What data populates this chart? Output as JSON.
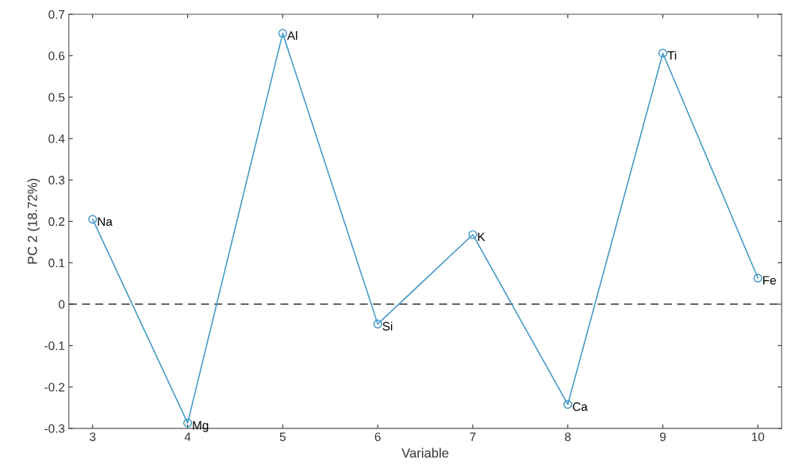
{
  "chart_data": {
    "type": "line",
    "xlabel": "Variable",
    "ylabel": "PC 2 (18.72%)",
    "x": [
      3,
      4,
      5,
      6,
      7,
      8,
      9,
      10
    ],
    "series": [
      {
        "color": "#3f97c4",
        "values": [
          0.205,
          -0.287,
          0.654,
          -0.048,
          0.168,
          -0.242,
          0.606,
          0.063
        ]
      }
    ],
    "marker": "circle",
    "line_style": "solid",
    "grid": false,
    "legend": false,
    "xlim": [
      2.75,
      10.25
    ],
    "xticks": [
      3,
      4,
      5,
      6,
      7,
      8,
      9,
      10
    ],
    "ylim": [
      -0.3,
      0.7
    ],
    "yticks": [
      -0.3,
      -0.2,
      -0.1,
      0,
      0.1,
      0.2,
      0.3,
      0.4,
      0.5,
      0.6,
      0.7
    ],
    "ref_lines": [
      {
        "axis": "y",
        "value": 0,
        "color": "#333333",
        "line_style": "dashed"
      }
    ],
    "annotations": [
      {
        "text": "Na",
        "x": 3,
        "y": 0.205
      },
      {
        "text": "Mg",
        "x": 4,
        "y": -0.287
      },
      {
        "text": "Al",
        "x": 5,
        "y": 0.654
      },
      {
        "text": "Si",
        "x": 6,
        "y": -0.048
      },
      {
        "text": "K",
        "x": 7,
        "y": 0.168
      },
      {
        "text": "Ca",
        "x": 8,
        "y": -0.242
      },
      {
        "text": "Ti",
        "x": 9,
        "y": 0.606
      },
      {
        "text": "Fe",
        "x": 10,
        "y": 0.063
      }
    ]
  }
}
